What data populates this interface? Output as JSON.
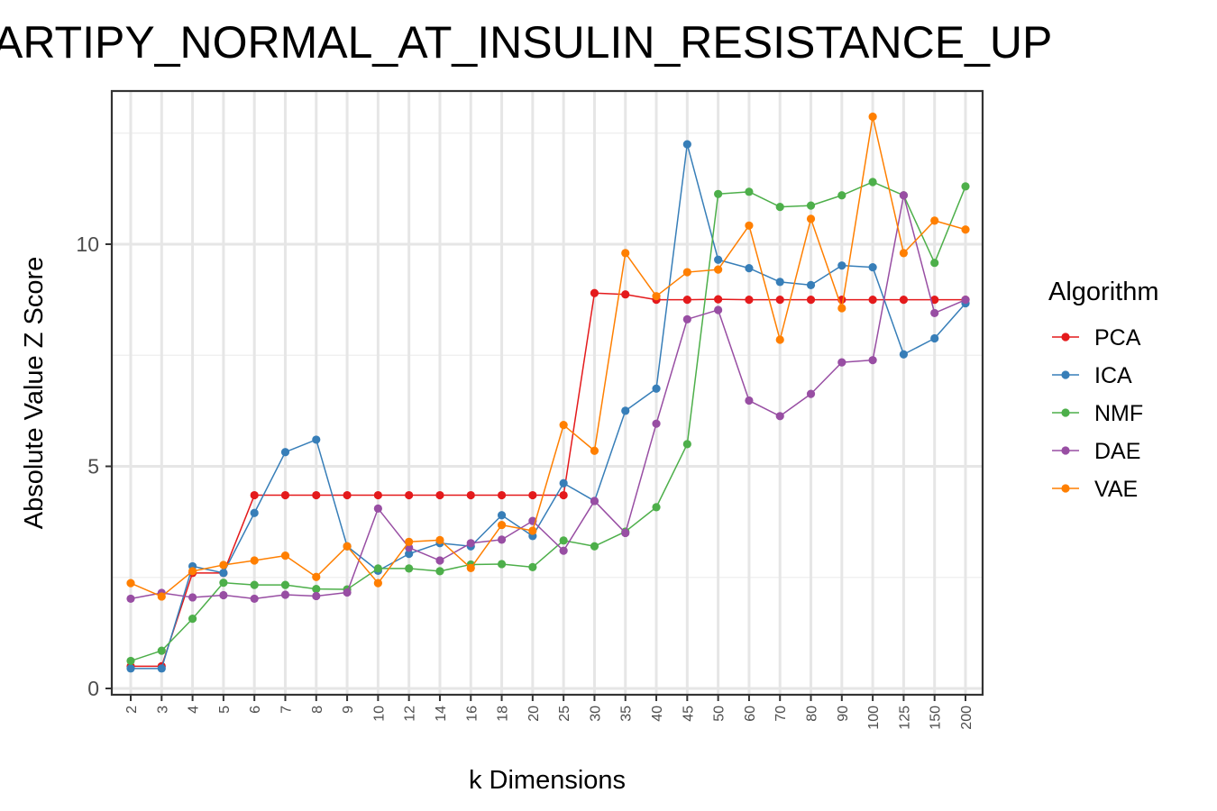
{
  "chart_data": {
    "type": "line",
    "title": "ADIPOCYTE_ADIPOGENESIS_STARTIPY_NORMAL_AT_INSULIN_RESISTANCE_UP",
    "visible_title": "ARTIPY_NORMAL_AT_INSULIN_RESISTANCE_UP",
    "xlabel": "k Dimensions",
    "ylabel": "Absolute Value Z Score",
    "categories": [
      "2",
      "3",
      "4",
      "5",
      "6",
      "7",
      "8",
      "9",
      "10",
      "12",
      "14",
      "16",
      "18",
      "20",
      "25",
      "30",
      "35",
      "40",
      "45",
      "50",
      "60",
      "70",
      "80",
      "90",
      "100",
      "125",
      "150",
      "200"
    ],
    "ylim": [
      -0.15,
      13.5
    ],
    "yticks": [
      0,
      5,
      10
    ],
    "grid": true,
    "legend": {
      "title": "Algorithm",
      "position": "right"
    },
    "series": [
      {
        "name": "PCA",
        "color": "#E41A1C",
        "values": [
          0.5,
          0.5,
          2.6,
          2.6,
          4.35,
          4.35,
          4.35,
          4.35,
          4.35,
          4.35,
          4.35,
          4.35,
          4.35,
          4.35,
          4.35,
          8.9,
          8.87,
          8.75,
          8.75,
          8.76,
          8.75,
          8.75,
          8.75,
          8.75,
          8.75,
          8.75,
          8.75,
          8.75
        ]
      },
      {
        "name": "ICA",
        "color": "#377EB8",
        "values": [
          0.45,
          0.45,
          2.75,
          2.6,
          3.95,
          5.32,
          5.6,
          3.2,
          2.65,
          3.03,
          3.27,
          3.2,
          3.9,
          3.43,
          4.62,
          4.22,
          6.25,
          6.75,
          12.25,
          9.65,
          9.46,
          9.15,
          9.08,
          9.52,
          9.48,
          7.52,
          7.88,
          8.67
        ]
      },
      {
        "name": "NMF",
        "color": "#4DAF4A",
        "values": [
          0.62,
          0.85,
          1.57,
          2.38,
          2.33,
          2.33,
          2.24,
          2.23,
          2.7,
          2.7,
          2.64,
          2.79,
          2.8,
          2.73,
          3.33,
          3.2,
          3.53,
          4.08,
          5.5,
          11.13,
          11.18,
          10.84,
          10.87,
          11.1,
          11.4,
          11.1,
          9.58,
          11.3
        ]
      },
      {
        "name": "DAE",
        "color": "#984EA3",
        "values": [
          2.02,
          2.15,
          2.05,
          2.1,
          2.02,
          2.11,
          2.08,
          2.16,
          4.05,
          3.17,
          2.88,
          3.27,
          3.35,
          3.77,
          3.1,
          4.22,
          3.5,
          5.96,
          8.31,
          8.52,
          6.48,
          6.13,
          6.63,
          7.34,
          7.39,
          11.1,
          8.45,
          8.75
        ]
      },
      {
        "name": "VAE",
        "color": "#FF7F00",
        "values": [
          2.37,
          2.07,
          2.64,
          2.78,
          2.88,
          2.99,
          2.51,
          3.2,
          2.37,
          3.3,
          3.34,
          2.71,
          3.68,
          3.55,
          5.93,
          5.35,
          9.8,
          8.83,
          9.37,
          9.43,
          10.42,
          7.85,
          10.57,
          8.56,
          12.87,
          9.8,
          10.53,
          10.33
        ]
      }
    ]
  }
}
